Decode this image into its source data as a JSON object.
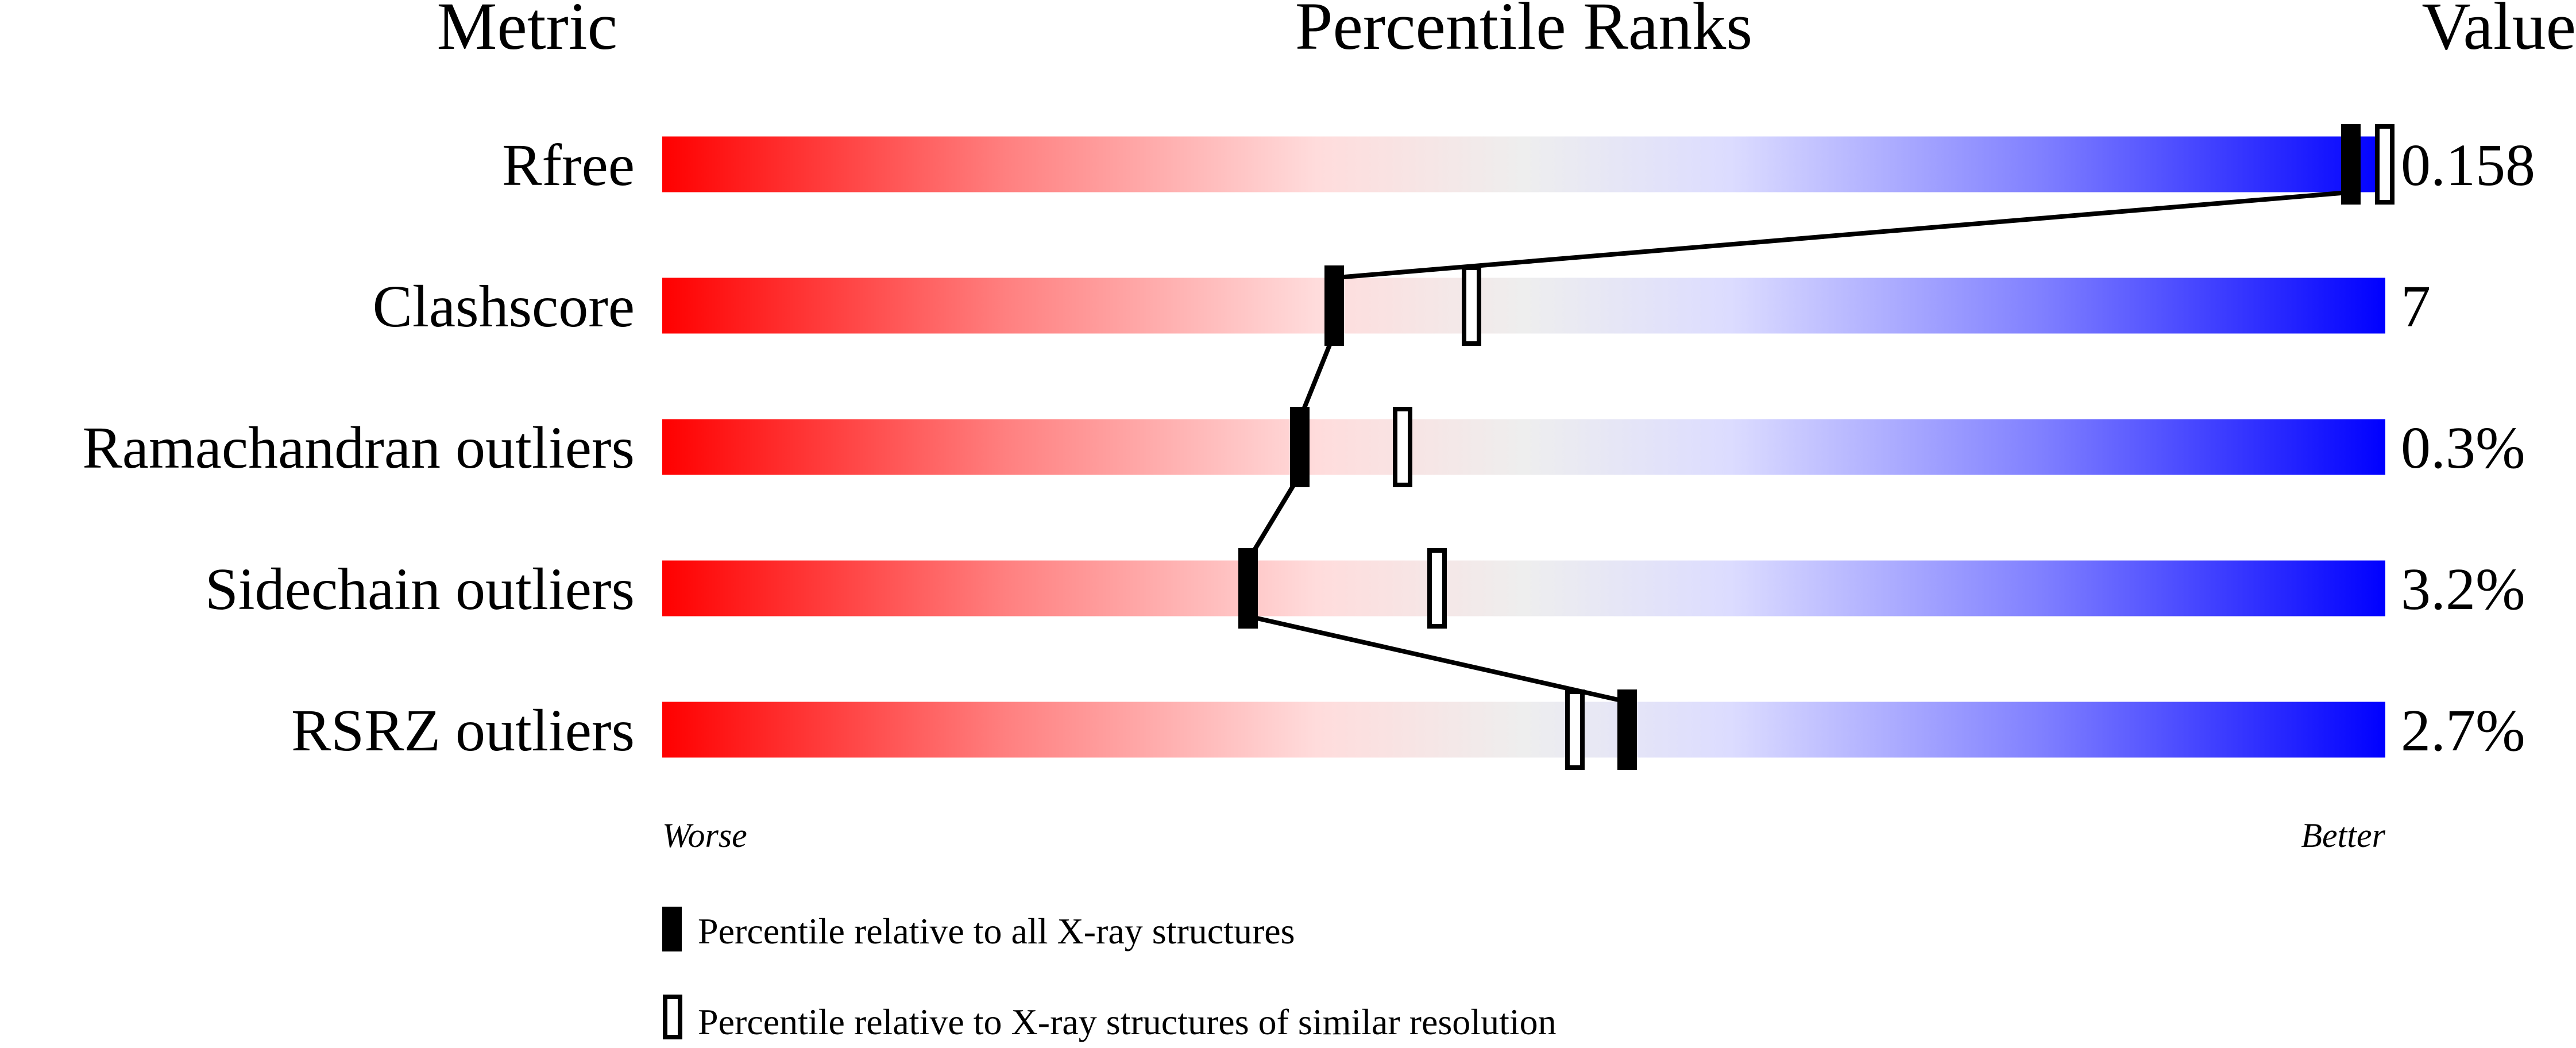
{
  "chart_data": {
    "type": "bar",
    "headers": {
      "metric": "Metric",
      "ranks": "Percentile Ranks",
      "value": "Value"
    },
    "xlim": [
      0,
      100
    ],
    "axis_labels": {
      "left": "Worse",
      "right": "Better"
    },
    "colors": {
      "worse": "#ff0000",
      "middle": "#eeeeee",
      "better": "#0000ff"
    },
    "rows": [
      {
        "metric": "Rfree",
        "value": "0.158",
        "percentile_all": 98,
        "percentile_similar": 100
      },
      {
        "metric": "Clashscore",
        "value": "7",
        "percentile_all": 39,
        "percentile_similar": 47
      },
      {
        "metric": "Ramachandran outliers",
        "value": "0.3%",
        "percentile_all": 37,
        "percentile_similar": 43
      },
      {
        "metric": "Sidechain outliers",
        "value": "3.2%",
        "percentile_all": 34,
        "percentile_similar": 45
      },
      {
        "metric": "RSRZ outliers",
        "value": "2.7%",
        "percentile_all": 56,
        "percentile_similar": 53
      }
    ],
    "legend": [
      {
        "marker": "filled",
        "label": "Percentile relative to all X-ray structures"
      },
      {
        "marker": "open",
        "label": "Percentile relative to X-ray structures of similar resolution"
      }
    ]
  }
}
